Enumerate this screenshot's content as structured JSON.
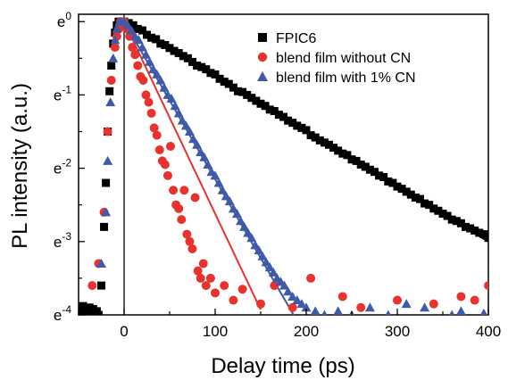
{
  "chart_data": {
    "type": "scatter",
    "xlabel": "Delay time (ps)",
    "ylabel": "PL intensity (a.u.)",
    "xlim": [
      -50,
      400
    ],
    "ylim": [
      -4,
      0.1
    ],
    "y_scale": "natural-log (ln I)",
    "x_ticks": [
      {
        "value": 0,
        "label": "0"
      },
      {
        "value": 100,
        "label": "100"
      },
      {
        "value": 200,
        "label": "200"
      },
      {
        "value": 300,
        "label": "300"
      },
      {
        "value": 400,
        "label": "400"
      }
    ],
    "y_ticks": [
      {
        "value": 0,
        "base": "e",
        "exp": "0"
      },
      {
        "value": -1,
        "base": "e",
        "exp": "-1"
      },
      {
        "value": -2,
        "base": "e",
        "exp": "-2"
      },
      {
        "value": -3,
        "base": "e",
        "exp": "-3"
      },
      {
        "value": -4,
        "base": "e",
        "exp": "-4"
      }
    ],
    "legend_position": "top-right",
    "vertical_line_x": 0,
    "series": [
      {
        "name": "FPIC6",
        "marker": "square",
        "color": "#000000",
        "fit": {
          "type": "linear",
          "slope": -0.0075,
          "intercept": 0,
          "x_range": [
            0,
            400
          ]
        },
        "points": [
          [
            -47,
            -3.95
          ],
          [
            -45,
            -3.88
          ],
          [
            -42,
            -3.93
          ],
          [
            -40,
            -4.0
          ],
          [
            -38,
            -3.9
          ],
          [
            -36,
            -3.97
          ],
          [
            -34,
            -3.92
          ],
          [
            -32,
            -3.98
          ],
          [
            -30,
            -3.95
          ],
          [
            -28,
            -4.0
          ],
          [
            -25,
            -3.6
          ],
          [
            -22,
            -2.8
          ],
          [
            -20,
            -2.2
          ],
          [
            -18,
            -1.5
          ],
          [
            -16,
            -0.95
          ],
          [
            -14,
            -0.6
          ],
          [
            -12,
            -0.3
          ],
          [
            -10,
            -0.15
          ],
          [
            -8,
            -0.05
          ],
          [
            -6,
            0.0
          ],
          [
            -4,
            -0.05
          ],
          [
            -2,
            0.0
          ],
          [
            0,
            0.0
          ],
          [
            5,
            -0.02
          ],
          [
            10,
            -0.05
          ],
          [
            15,
            -0.1
          ],
          [
            20,
            -0.12
          ],
          [
            25,
            -0.18
          ],
          [
            30,
            -0.22
          ],
          [
            35,
            -0.24
          ],
          [
            40,
            -0.3
          ],
          [
            45,
            -0.32
          ],
          [
            50,
            -0.36
          ],
          [
            55,
            -0.4
          ],
          [
            60,
            -0.43
          ],
          [
            65,
            -0.47
          ],
          [
            70,
            -0.5
          ],
          [
            75,
            -0.55
          ],
          [
            80,
            -0.6
          ],
          [
            85,
            -0.62
          ],
          [
            90,
            -0.65
          ],
          [
            95,
            -0.7
          ],
          [
            100,
            -0.72
          ],
          [
            105,
            -0.78
          ],
          [
            110,
            -0.82
          ],
          [
            115,
            -0.85
          ],
          [
            120,
            -0.9
          ],
          [
            125,
            -0.95
          ],
          [
            130,
            -0.96
          ],
          [
            135,
            -1.0
          ],
          [
            140,
            -1.04
          ],
          [
            145,
            -1.08
          ],
          [
            150,
            -1.12
          ],
          [
            155,
            -1.15
          ],
          [
            160,
            -1.2
          ],
          [
            165,
            -1.22
          ],
          [
            170,
            -1.27
          ],
          [
            175,
            -1.3
          ],
          [
            180,
            -1.35
          ],
          [
            185,
            -1.38
          ],
          [
            190,
            -1.42
          ],
          [
            195,
            -1.45
          ],
          [
            200,
            -1.48
          ],
          [
            205,
            -1.55
          ],
          [
            210,
            -1.58
          ],
          [
            215,
            -1.62
          ],
          [
            220,
            -1.65
          ],
          [
            225,
            -1.68
          ],
          [
            230,
            -1.72
          ],
          [
            235,
            -1.76
          ],
          [
            240,
            -1.8
          ],
          [
            245,
            -1.82
          ],
          [
            250,
            -1.88
          ],
          [
            255,
            -1.9
          ],
          [
            260,
            -1.95
          ],
          [
            265,
            -1.98
          ],
          [
            270,
            -2.02
          ],
          [
            275,
            -2.05
          ],
          [
            280,
            -2.1
          ],
          [
            285,
            -2.12
          ],
          [
            290,
            -2.18
          ],
          [
            295,
            -2.2
          ],
          [
            300,
            -2.25
          ],
          [
            305,
            -2.28
          ],
          [
            310,
            -2.32
          ],
          [
            315,
            -2.36
          ],
          [
            320,
            -2.4
          ],
          [
            325,
            -2.42
          ],
          [
            330,
            -2.48
          ],
          [
            335,
            -2.5
          ],
          [
            340,
            -2.55
          ],
          [
            345,
            -2.58
          ],
          [
            350,
            -2.62
          ],
          [
            355,
            -2.65
          ],
          [
            360,
            -2.7
          ],
          [
            365,
            -2.72
          ],
          [
            370,
            -2.75
          ],
          [
            375,
            -2.8
          ],
          [
            380,
            -2.82
          ],
          [
            385,
            -2.85
          ],
          [
            390,
            -2.88
          ],
          [
            395,
            -2.9
          ],
          [
            400,
            -2.95
          ]
        ]
      },
      {
        "name": "blend film without CN",
        "marker": "circle",
        "color": "#e8322d",
        "fit": {
          "type": "single-exponential",
          "slope": -0.0262,
          "intercept": 0,
          "x_range": [
            0,
            150
          ]
        },
        "points": [
          [
            -35,
            -3.6
          ],
          [
            -28,
            -3.3
          ],
          [
            -22,
            -2.6
          ],
          [
            -18,
            -1.5
          ],
          [
            -14,
            -0.8
          ],
          [
            -10,
            -0.35
          ],
          [
            -8,
            -0.2
          ],
          [
            -6,
            -0.1
          ],
          [
            -4,
            0.0
          ],
          [
            -2,
            -0.05
          ],
          [
            0,
            0.0
          ],
          [
            3,
            -0.1
          ],
          [
            6,
            -0.2
          ],
          [
            9,
            -0.35
          ],
          [
            12,
            -0.45
          ],
          [
            15,
            -0.6
          ],
          [
            18,
            -0.75
          ],
          [
            21,
            -0.8
          ],
          [
            24,
            -1.0
          ],
          [
            27,
            -1.1
          ],
          [
            30,
            -1.25
          ],
          [
            33,
            -1.45
          ],
          [
            36,
            -1.55
          ],
          [
            39,
            -1.75
          ],
          [
            42,
            -1.9
          ],
          [
            45,
            -1.95
          ],
          [
            48,
            -2.1
          ],
          [
            51,
            -1.7
          ],
          [
            54,
            -2.3
          ],
          [
            57,
            -2.5
          ],
          [
            60,
            -2.55
          ],
          [
            63,
            -2.7
          ],
          [
            66,
            -2.3
          ],
          [
            69,
            -2.9
          ],
          [
            72,
            -3.0
          ],
          [
            75,
            -3.1
          ],
          [
            78,
            -2.4
          ],
          [
            81,
            -3.4
          ],
          [
            84,
            -3.5
          ],
          [
            87,
            -3.3
          ],
          [
            90,
            -3.6
          ],
          [
            95,
            -3.5
          ],
          [
            100,
            -3.7
          ],
          [
            110,
            -3.6
          ],
          [
            120,
            -3.8
          ],
          [
            130,
            -3.65
          ],
          [
            150,
            -3.85
          ],
          [
            165,
            -3.6
          ],
          [
            185,
            -3.9
          ],
          [
            205,
            -3.5
          ],
          [
            240,
            -3.75
          ],
          [
            260,
            -3.9
          ],
          [
            300,
            -3.8
          ],
          [
            340,
            -3.85
          ],
          [
            370,
            -3.75
          ],
          [
            385,
            -3.8
          ],
          [
            400,
            -3.6
          ]
        ]
      },
      {
        "name": "blend film with 1% CN",
        "marker": "triangle",
        "color": "#3e5aa8",
        "fit": {
          "type": "single-exponential",
          "slope": -0.0215,
          "intercept": 0,
          "x_range": [
            0,
            200
          ]
        },
        "points": [
          [
            -25,
            -3.3
          ],
          [
            -20,
            -2.6
          ],
          [
            -18,
            -1.9
          ],
          [
            -15,
            -1.1
          ],
          [
            -12,
            -0.5
          ],
          [
            -10,
            -0.25
          ],
          [
            -8,
            -0.1
          ],
          [
            -5,
            0.0
          ],
          [
            -2,
            0.0
          ],
          [
            0,
            0.0
          ],
          [
            4,
            -0.05
          ],
          [
            8,
            -0.12
          ],
          [
            12,
            -0.2
          ],
          [
            16,
            -0.25
          ],
          [
            20,
            -0.35
          ],
          [
            24,
            -0.45
          ],
          [
            28,
            -0.55
          ],
          [
            32,
            -0.65
          ],
          [
            36,
            -0.72
          ],
          [
            40,
            -0.8
          ],
          [
            44,
            -0.9
          ],
          [
            48,
            -1.0
          ],
          [
            52,
            -1.05
          ],
          [
            56,
            -1.15
          ],
          [
            60,
            -1.25
          ],
          [
            64,
            -1.35
          ],
          [
            68,
            -1.42
          ],
          [
            72,
            -1.5
          ],
          [
            76,
            -1.6
          ],
          [
            80,
            -1.68
          ],
          [
            84,
            -1.78
          ],
          [
            88,
            -1.85
          ],
          [
            92,
            -1.95
          ],
          [
            96,
            -2.05
          ],
          [
            100,
            -2.1
          ],
          [
            104,
            -2.2
          ],
          [
            108,
            -2.3
          ],
          [
            112,
            -2.38
          ],
          [
            116,
            -2.45
          ],
          [
            120,
            -2.55
          ],
          [
            124,
            -2.62
          ],
          [
            128,
            -2.72
          ],
          [
            132,
            -2.8
          ],
          [
            136,
            -2.88
          ],
          [
            140,
            -2.95
          ],
          [
            144,
            -3.05
          ],
          [
            148,
            -3.12
          ],
          [
            152,
            -3.2
          ],
          [
            156,
            -3.28
          ],
          [
            160,
            -3.35
          ],
          [
            164,
            -3.42
          ],
          [
            168,
            -3.5
          ],
          [
            172,
            -3.55
          ],
          [
            176,
            -3.6
          ],
          [
            180,
            -3.68
          ],
          [
            185,
            -3.75
          ],
          [
            190,
            -3.8
          ],
          [
            195,
            -3.85
          ],
          [
            200,
            -3.9
          ],
          [
            210,
            -3.95
          ],
          [
            220,
            -4.0
          ],
          [
            235,
            -3.95
          ],
          [
            250,
            -4.0
          ],
          [
            270,
            -3.9
          ],
          [
            290,
            -4.0
          ],
          [
            310,
            -3.85
          ],
          [
            330,
            -3.9
          ],
          [
            360,
            -4.0
          ],
          [
            370,
            -3.95
          ],
          [
            395,
            -3.98
          ]
        ]
      }
    ]
  }
}
